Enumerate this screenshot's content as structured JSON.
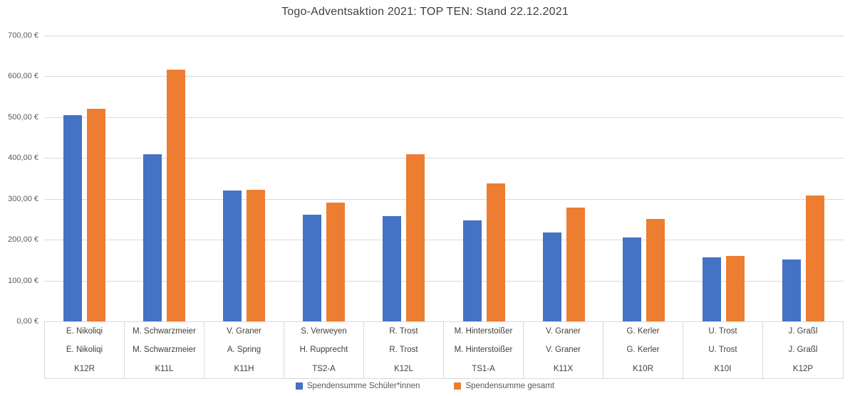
{
  "title": "Togo-Adventsaktion 2021: TOP TEN: Stand 22.12.2021",
  "colors": {
    "series_schueler": "#4472C4",
    "series_gesamt": "#ED7D31",
    "gridline": "#D9D9D9",
    "axis_text": "#595959",
    "table_text": "#404040"
  },
  "chart_data": {
    "type": "bar",
    "title": "Togo-Adventsaktion 2021: TOP TEN: Stand 22.12.2021",
    "xlabel": "",
    "ylabel": "",
    "grid": true,
    "legend_position": "bottom",
    "y_axis": {
      "min": 0,
      "max": 700,
      "step": 100,
      "ticks": [
        {
          "value": 700,
          "label": "700,00 €"
        },
        {
          "value": 600,
          "label": "600,00 €"
        },
        {
          "value": 500,
          "label": "500,00 €"
        },
        {
          "value": 400,
          "label": "400,00 €"
        },
        {
          "value": 300,
          "label": "300,00 €"
        },
        {
          "value": 200,
          "label": "200,00 €"
        },
        {
          "value": 100,
          "label": "100,00 €"
        },
        {
          "value": 0,
          "label": "0,00 €"
        }
      ]
    },
    "categories": [
      {
        "row1": "E. Nikoliqi",
        "row2": "E. Nikoliqi",
        "row3": "K12R"
      },
      {
        "row1": "M. Schwarzmeier",
        "row2": "M. Schwarzmeier",
        "row3": "K11L"
      },
      {
        "row1": "V. Graner",
        "row2": "A. Spring",
        "row3": "K11H"
      },
      {
        "row1": "S. Verweyen",
        "row2": "H. Rupprecht",
        "row3": "TS2-A"
      },
      {
        "row1": "R. Trost",
        "row2": "R. Trost",
        "row3": "K12L"
      },
      {
        "row1": "M. Hinterstoißer",
        "row2": "M. Hinterstoißer",
        "row3": "TS1-A"
      },
      {
        "row1": "V. Graner",
        "row2": "V. Graner",
        "row3": "K11X"
      },
      {
        "row1": "G. Kerler",
        "row2": "G. Kerler",
        "row3": "K10R"
      },
      {
        "row1": "U. Trost",
        "row2": "U. Trost",
        "row3": "K10I"
      },
      {
        "row1": "J. Graßl",
        "row2": "J. Graßl",
        "row3": "K12P"
      }
    ],
    "series": [
      {
        "name": "Spendensumme Schüler*innen",
        "color": "#4472C4",
        "values": [
          505,
          409,
          321,
          261,
          257,
          248,
          217,
          205,
          156,
          152
        ]
      },
      {
        "name": "Spendensumme gesamt",
        "color": "#ED7D31",
        "values": [
          520,
          616,
          322,
          291,
          409,
          338,
          279,
          250,
          160,
          309
        ]
      }
    ]
  }
}
